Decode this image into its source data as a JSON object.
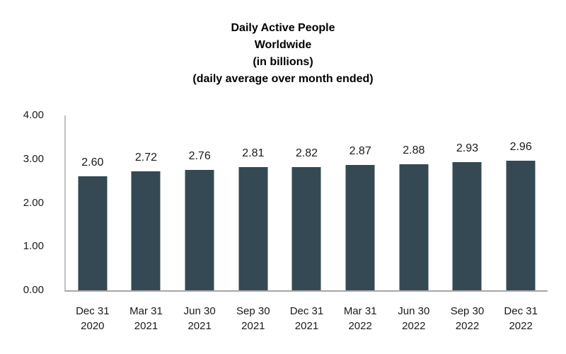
{
  "title_lines": [
    "Daily Active People",
    "Worldwide",
    "(in billions)",
    "(daily average over month ended)"
  ],
  "chart_data": {
    "type": "bar",
    "title": "Daily Active People Worldwide (in billions) (daily average over month ended)",
    "categories": [
      "Dec 31 2020",
      "Mar 31 2021",
      "Jun 30 2021",
      "Sep 30 2021",
      "Dec 31 2021",
      "Mar 31 2022",
      "Jun 30 2022",
      "Sep 30 2022",
      "Dec 31 2022"
    ],
    "category_lines": [
      [
        "Dec 31",
        "2020"
      ],
      [
        "Mar 31",
        "2021"
      ],
      [
        "Jun 30",
        "2021"
      ],
      [
        "Sep 30",
        "2021"
      ],
      [
        "Dec 31",
        "2021"
      ],
      [
        "Mar 31",
        "2022"
      ],
      [
        "Jun 30",
        "2022"
      ],
      [
        "Sep 30",
        "2022"
      ],
      [
        "Dec 31",
        "2022"
      ]
    ],
    "values": [
      2.6,
      2.72,
      2.76,
      2.81,
      2.82,
      2.87,
      2.88,
      2.93,
      2.96
    ],
    "data_labels": [
      "2.60",
      "2.72",
      "2.76",
      "2.81",
      "2.82",
      "2.87",
      "2.88",
      "2.93",
      "2.96"
    ],
    "xlabel": "",
    "ylabel": "",
    "ylim": [
      0,
      4
    ],
    "y_ticks": [
      "4.00",
      "3.00",
      "2.00",
      "1.00",
      "0.00"
    ],
    "grid": false,
    "legend": false,
    "bar_color": "#344953",
    "axis_line_color": "#c0c0c0",
    "baseline_color": "#a6a6a6",
    "text_color": "#1a1a1a"
  }
}
